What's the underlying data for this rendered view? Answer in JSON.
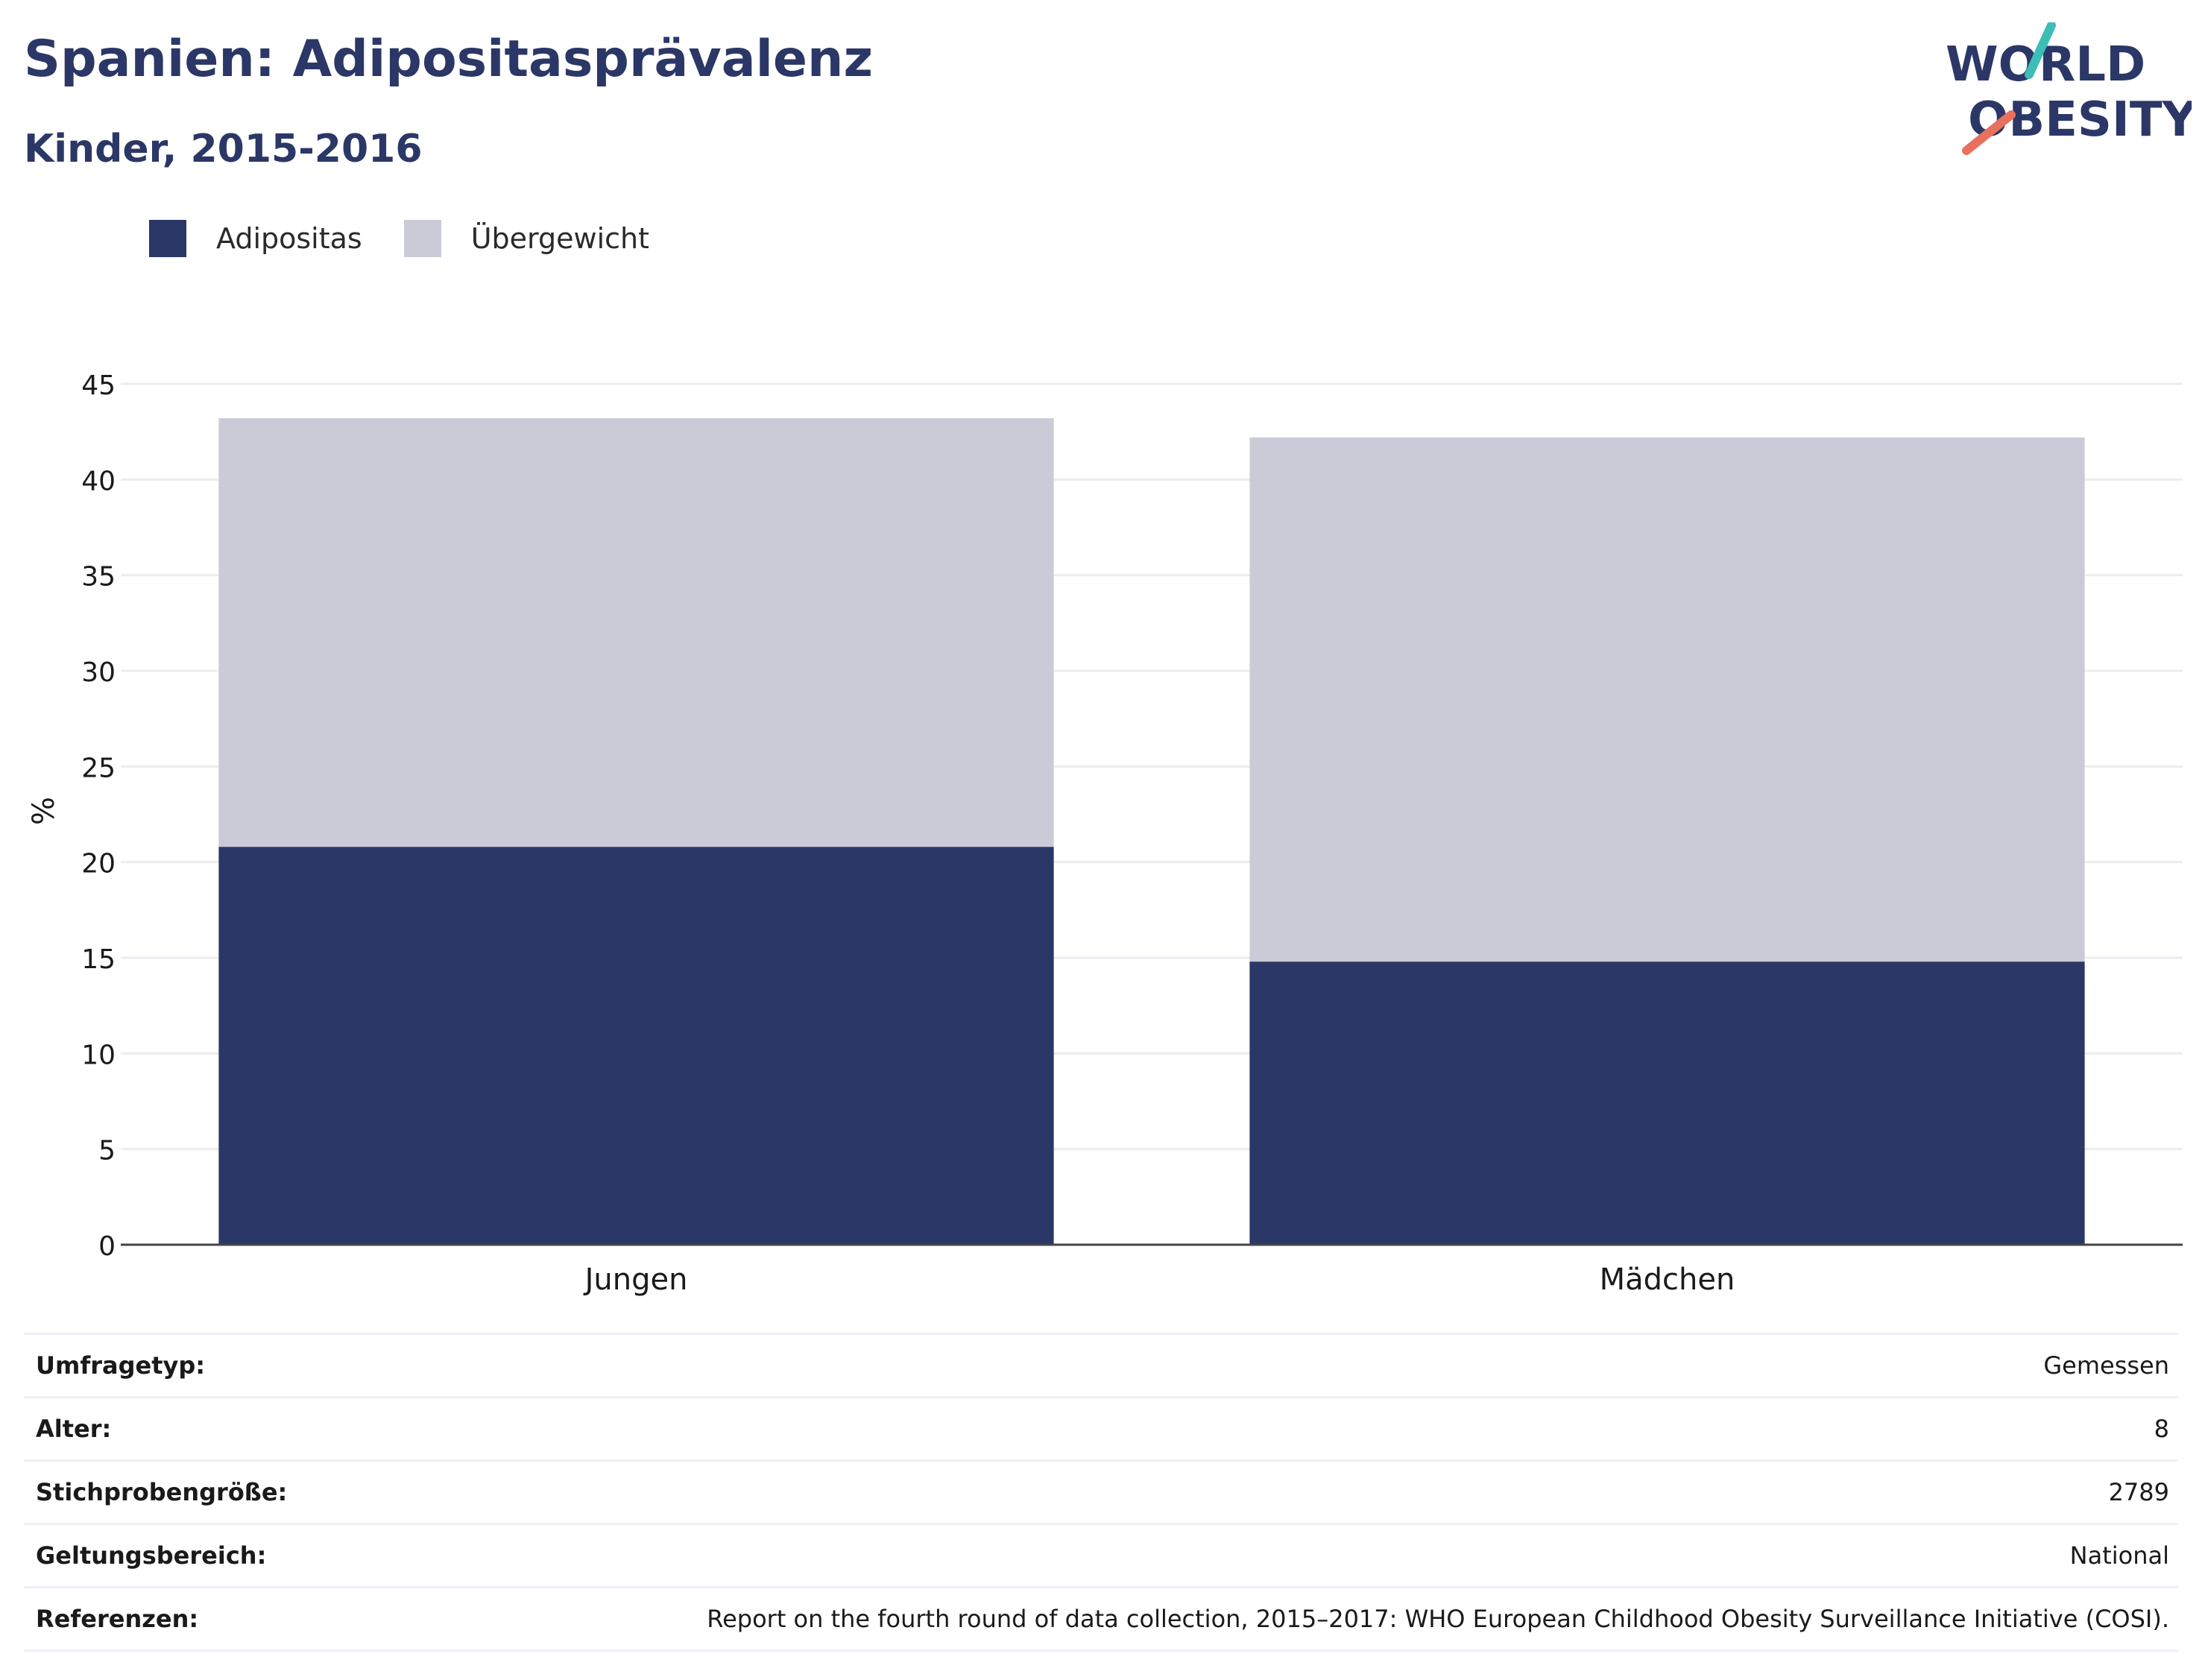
{
  "title": "Spanien: Adipositasprävalenz",
  "subtitle": "Kinder, 2015-2016",
  "logo": {
    "line1": "WORLD",
    "line2": "OBESITY"
  },
  "colors": {
    "adipositas": "#2b3766",
    "uebergewicht": "#cacbd6",
    "text": "#2b3766",
    "accent_teal": "#3dbdb6",
    "accent_coral": "#e8705e"
  },
  "legend": [
    {
      "label": "Adipositas",
      "color": "#2b3766"
    },
    {
      "label": "Übergewicht",
      "color": "#cacbd6"
    }
  ],
  "chart_data": {
    "type": "bar",
    "stacked": true,
    "categories": [
      "Jungen",
      "Mädchen"
    ],
    "series": [
      {
        "name": "Adipositas",
        "values": [
          20.8,
          14.8
        ]
      },
      {
        "name": "Übergewicht",
        "values": [
          22.4,
          27.4
        ]
      }
    ],
    "ylabel": "%",
    "ylim": [
      0,
      45
    ],
    "yticks": [
      0,
      5,
      10,
      15,
      20,
      25,
      30,
      35,
      40,
      45
    ],
    "grid": true,
    "legend_position": "top-left"
  },
  "info": [
    {
      "label": "Umfragetyp:",
      "value": "Gemessen"
    },
    {
      "label": "Alter:",
      "value": "8"
    },
    {
      "label": "Stichprobengröße:",
      "value": "2789"
    },
    {
      "label": "Geltungsbereich:",
      "value": "National"
    },
    {
      "label": "Referenzen:",
      "value": "Report on the fourth round of data collection, 2015–2017: WHO European Childhood Obesity Surveillance Initiative (COSI)."
    }
  ]
}
